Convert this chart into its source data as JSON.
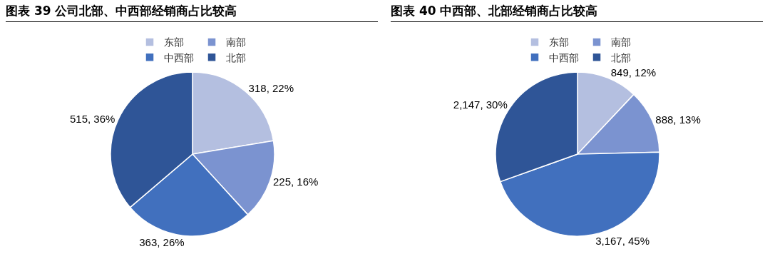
{
  "chart_data": [
    {
      "type": "pie",
      "title": "图表 39  公司北部、中西部经销商占比较高",
      "categories": [
        "东部",
        "南部",
        "中西部",
        "北部"
      ],
      "values": [
        318,
        225,
        363,
        515
      ],
      "colors": [
        "#b4bfe0",
        "#7b93d0",
        "#4170be",
        "#2f5597"
      ],
      "value_labels": [
        "318, 22%",
        "225, 16%",
        "363, 26%",
        "515, 36%"
      ],
      "legend": "top"
    },
    {
      "type": "pie",
      "title": "图表 40  中西部、北部经销商占比较高",
      "categories": [
        "东部",
        "南部",
        "中西部",
        "北部"
      ],
      "values": [
        849,
        888,
        3167,
        2147
      ],
      "colors": [
        "#b4bfe0",
        "#7b93d0",
        "#4170be",
        "#2f5597"
      ],
      "value_labels": [
        "849, 12%",
        "888, 13%",
        "3,167, 45%",
        "2,147, 30%"
      ],
      "legend": "top"
    }
  ]
}
